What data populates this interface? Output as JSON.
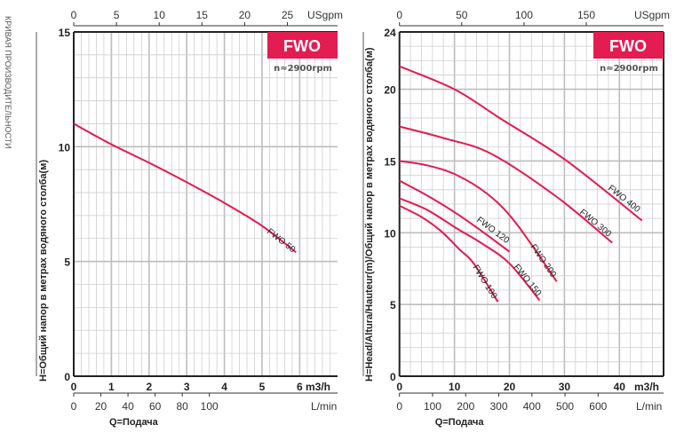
{
  "side_title": "КРИВАЯ ПРОИЗВОДИТЕЛЬНОСТИ",
  "colors": {
    "curve": "#e5194f",
    "badge": "#e31c52",
    "grid": "#cfcfcf",
    "grid_major": "#bdbdbd",
    "axis": "#222222"
  },
  "chart_data": [
    {
      "type": "line",
      "badge": "FWO",
      "speed": "n≈2900rpm",
      "ylabel": "H=Общий напор в метрах водяного столба(м)",
      "xlabel": "Q=Подача",
      "xlim": [
        0,
        7
      ],
      "ylim": [
        0,
        15
      ],
      "y_ticks": [
        "0",
        "5",
        "10",
        "15"
      ],
      "x_ticks": [
        "0",
        "1",
        "2",
        "3",
        "4",
        "5",
        "6"
      ],
      "x_unit": "m3/h",
      "lmin_ticks": [
        "0",
        "20",
        "40",
        "60",
        "80",
        "100"
      ],
      "lmin_unit": "L/min",
      "usgpm_ticks": [
        "0",
        "5",
        "10",
        "15",
        "20",
        "25"
      ],
      "usgpm_unit": "USgpm",
      "series": [
        {
          "name": "FWO 50",
          "x": [
            0,
            1,
            2,
            3,
            4,
            5,
            5.9
          ],
          "y": [
            11.0,
            10.1,
            9.3,
            8.45,
            7.55,
            6.55,
            5.4
          ]
        }
      ]
    },
    {
      "type": "line",
      "badge": "FWO",
      "speed": "n≈2900rpm",
      "ylabel": "H=Head/Altura/Hauteur(m)/Общий напор в метрах водяного столба(м)",
      "xlabel": "Q=Подача",
      "xlim": [
        0,
        48.5
      ],
      "ylim": [
        0,
        24
      ],
      "y_ticks": [
        "0",
        "5",
        "10",
        "15",
        "20",
        "24"
      ],
      "x_ticks": [
        "0",
        "10",
        "20",
        "30",
        "40"
      ],
      "x_unit": "m3/h",
      "lmin_ticks": [
        "0",
        "100",
        "200",
        "300",
        "400",
        "500",
        "600"
      ],
      "lmin_unit": "L/min",
      "usgpm_ticks": [
        "0",
        "50",
        "100",
        "150"
      ],
      "usgpm_unit": "USgpm",
      "series": [
        {
          "name": "FWO 400",
          "x": [
            0,
            10,
            18.4,
            30.2,
            44.1
          ],
          "y": [
            21.6,
            20.0,
            17.95,
            15.07,
            10.85
          ]
        },
        {
          "name": "FWO 300",
          "x": [
            0,
            8,
            16.7,
            28.6,
            38.7
          ],
          "y": [
            17.4,
            16.6,
            15.5,
            12.5,
            9.3
          ]
        },
        {
          "name": "FWO 200",
          "x": [
            0,
            5,
            10.3,
            16,
            21.05,
            28.6
          ],
          "y": [
            15.0,
            14.7,
            14.04,
            12.7,
            10.74,
            6.6
          ]
        },
        {
          "name": "FWO 120",
          "x": [
            0,
            5,
            10.3,
            15,
            20
          ],
          "y": [
            13.63,
            12.6,
            11.36,
            10.1,
            8.68
          ]
        },
        {
          "name": "FWO 150",
          "x": [
            0,
            5,
            10.3,
            15,
            20,
            25.5
          ],
          "y": [
            12.4,
            11.6,
            10.33,
            9.25,
            7.86,
            5.28
          ]
        },
        {
          "name": "FWO 100",
          "x": [
            0,
            4,
            7.6,
            11,
            13.5,
            17.9
          ],
          "y": [
            11.88,
            11.1,
            10.1,
            8.8,
            7.86,
            5.18
          ]
        }
      ]
    }
  ]
}
